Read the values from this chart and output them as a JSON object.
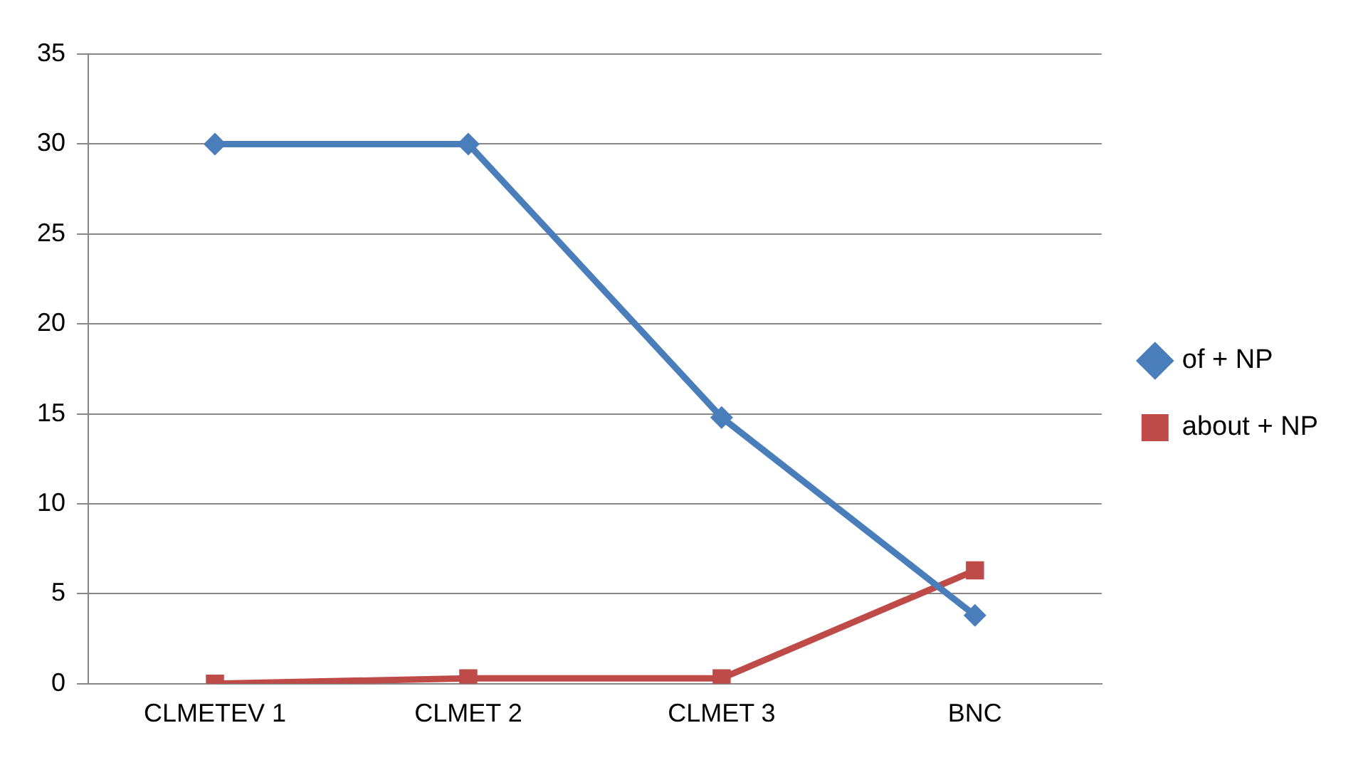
{
  "chart_data": {
    "type": "line",
    "categories": [
      "CLMETEV 1",
      "CLMET 2",
      "CLMET 3",
      "BNC"
    ],
    "series": [
      {
        "name": "of + NP",
        "color": "#4a7ebb",
        "marker": "diamond",
        "values": [
          30,
          30,
          14.8,
          3.8
        ]
      },
      {
        "name": "about + NP",
        "color": "#be4b48",
        "marker": "square",
        "values": [
          0,
          0.3,
          0.3,
          6.3
        ]
      }
    ],
    "ylim": [
      0,
      35
    ],
    "yticks": [
      0,
      5,
      10,
      15,
      20,
      25,
      30,
      35
    ],
    "grid": "y",
    "legend": "right"
  }
}
